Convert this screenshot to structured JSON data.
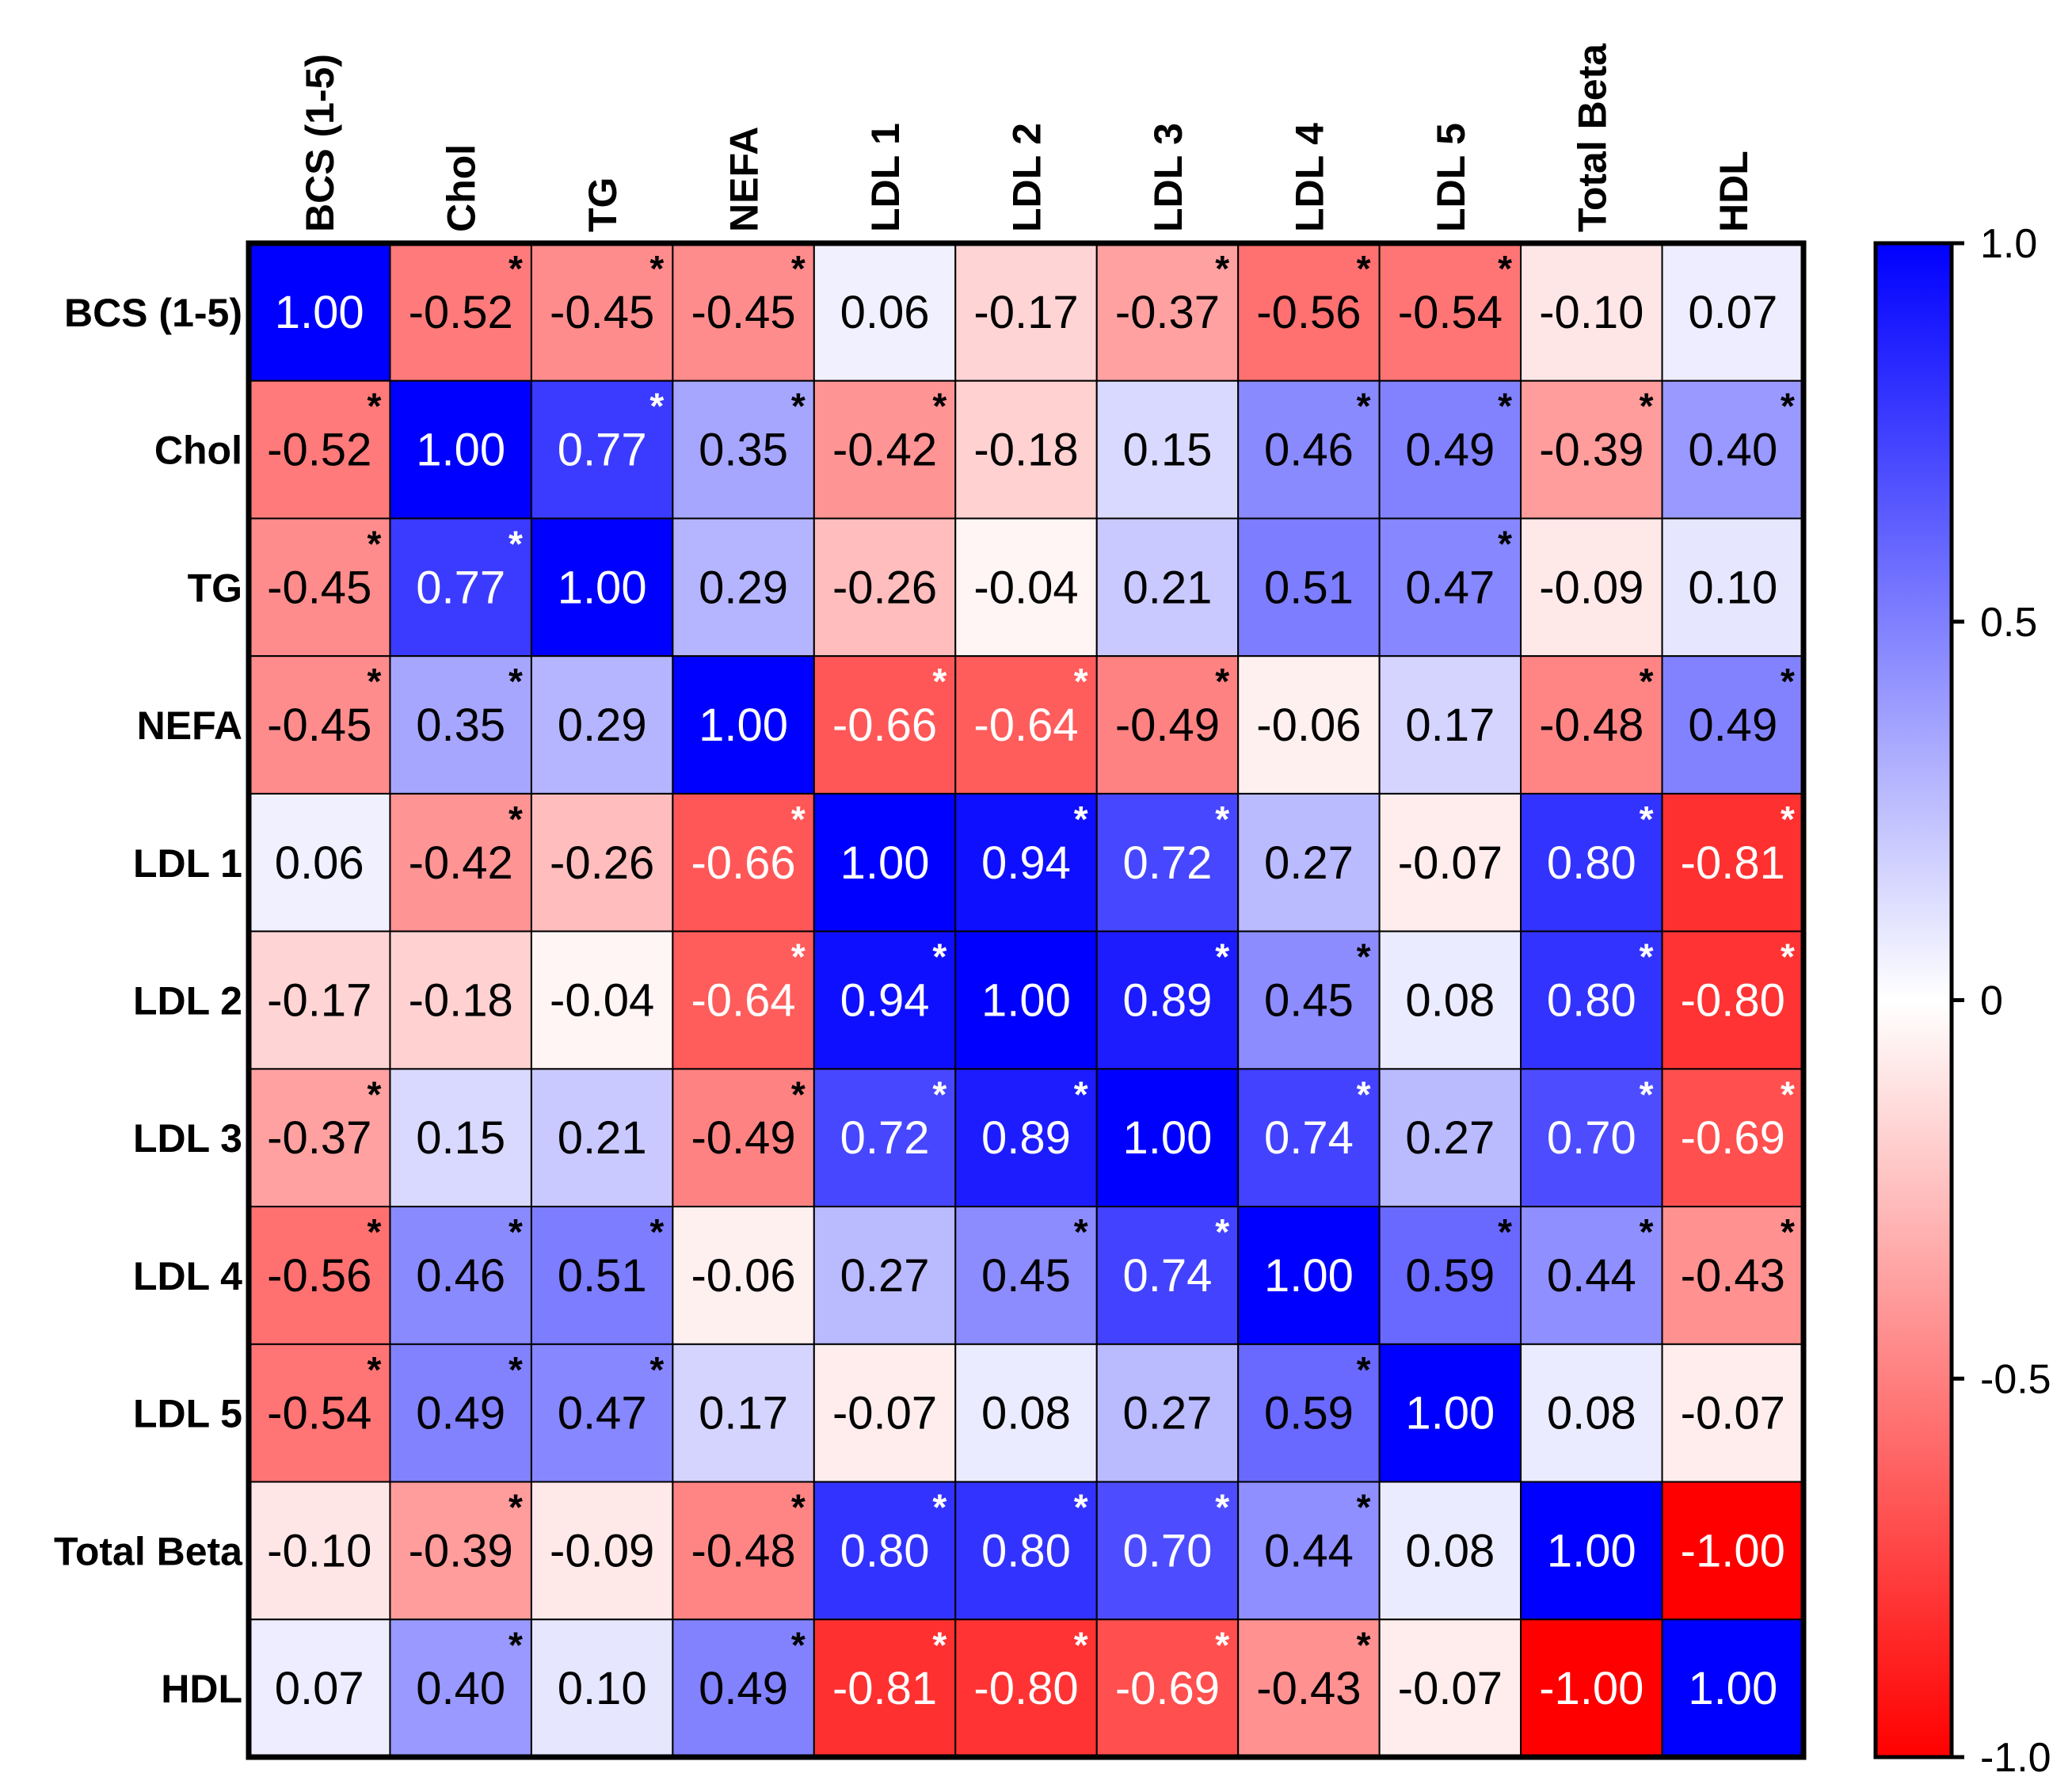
{
  "chart_data": {
    "type": "heatmap",
    "title": "",
    "variables": [
      "BCS (1-5)",
      "Chol",
      "TG",
      "NEFA",
      "LDL 1",
      "LDL 2",
      "LDL 3",
      "LDL 4",
      "LDL 5",
      "Total Beta",
      "HDL"
    ],
    "matrix": [
      [
        "1.00",
        "-0.52",
        "-0.45",
        "-0.45",
        "0.06",
        "-0.17",
        "-0.37",
        "-0.56",
        "-0.54",
        "-0.10",
        "0.07"
      ],
      [
        "-0.52",
        "1.00",
        "0.77",
        "0.35",
        "-0.42",
        "-0.18",
        "0.15",
        "0.46",
        "0.49",
        "-0.39",
        "0.40"
      ],
      [
        "-0.45",
        "0.77",
        "1.00",
        "0.29",
        "-0.26",
        "-0.04",
        "0.21",
        "0.51",
        "0.47",
        "-0.09",
        "0.10"
      ],
      [
        "-0.45",
        "0.35",
        "0.29",
        "1.00",
        "-0.66",
        "-0.64",
        "-0.49",
        "-0.06",
        "0.17",
        "-0.48",
        "0.49"
      ],
      [
        "0.06",
        "-0.42",
        "-0.26",
        "-0.66",
        "1.00",
        "0.94",
        "0.72",
        "0.27",
        "-0.07",
        "0.80",
        "-0.81"
      ],
      [
        "-0.17",
        "-0.18",
        "-0.04",
        "-0.64",
        "0.94",
        "1.00",
        "0.89",
        "0.45",
        "0.08",
        "0.80",
        "-0.80"
      ],
      [
        "-0.37",
        "0.15",
        "0.21",
        "-0.49",
        "0.72",
        "0.89",
        "1.00",
        "0.74",
        "0.27",
        "0.70",
        "-0.69"
      ],
      [
        "-0.56",
        "0.46",
        "0.51",
        "-0.06",
        "0.27",
        "0.45",
        "0.74",
        "1.00",
        "0.59",
        "0.44",
        "-0.43"
      ],
      [
        "-0.54",
        "0.49",
        "0.47",
        "0.17",
        "-0.07",
        "0.08",
        "0.27",
        "0.59",
        "1.00",
        "0.08",
        "-0.07"
      ],
      [
        "-0.10",
        "-0.39",
        "-0.09",
        "-0.48",
        "0.80",
        "0.80",
        "0.70",
        "0.44",
        "0.08",
        "1.00",
        "-1.00"
      ],
      [
        "0.07",
        "0.40",
        "0.10",
        "0.49",
        "-0.81",
        "-0.80",
        "-0.69",
        "-0.43",
        "-0.07",
        "-1.00",
        "1.00"
      ]
    ],
    "significant": [
      [
        false,
        true,
        true,
        true,
        false,
        false,
        true,
        true,
        true,
        false,
        false
      ],
      [
        true,
        false,
        true,
        true,
        true,
        false,
        false,
        true,
        true,
        true,
        true
      ],
      [
        true,
        true,
        false,
        false,
        false,
        false,
        false,
        false,
        true,
        false,
        false
      ],
      [
        true,
        true,
        false,
        false,
        true,
        true,
        true,
        false,
        false,
        true,
        true
      ],
      [
        false,
        true,
        false,
        true,
        false,
        true,
        true,
        false,
        false,
        true,
        true
      ],
      [
        false,
        false,
        false,
        true,
        true,
        false,
        true,
        true,
        false,
        true,
        true
      ],
      [
        true,
        false,
        false,
        true,
        true,
        true,
        false,
        true,
        false,
        true,
        true
      ],
      [
        true,
        true,
        true,
        false,
        false,
        true,
        true,
        false,
        true,
        true,
        true
      ],
      [
        true,
        true,
        true,
        false,
        false,
        false,
        false,
        true,
        false,
        false,
        false
      ],
      [
        false,
        true,
        false,
        true,
        true,
        true,
        true,
        true,
        false,
        false,
        false
      ],
      [
        false,
        true,
        false,
        true,
        true,
        true,
        true,
        true,
        false,
        false,
        false
      ]
    ],
    "significance_marker": "*",
    "colorbar": {
      "range": [
        -1.0,
        1.0
      ],
      "ticks": [
        "1.0",
        "0.5",
        "0",
        "-0.5",
        "-1.0"
      ],
      "colors": {
        "negative": "#ff0000",
        "zero": "#ffffff",
        "positive": "#0000ff"
      }
    }
  }
}
